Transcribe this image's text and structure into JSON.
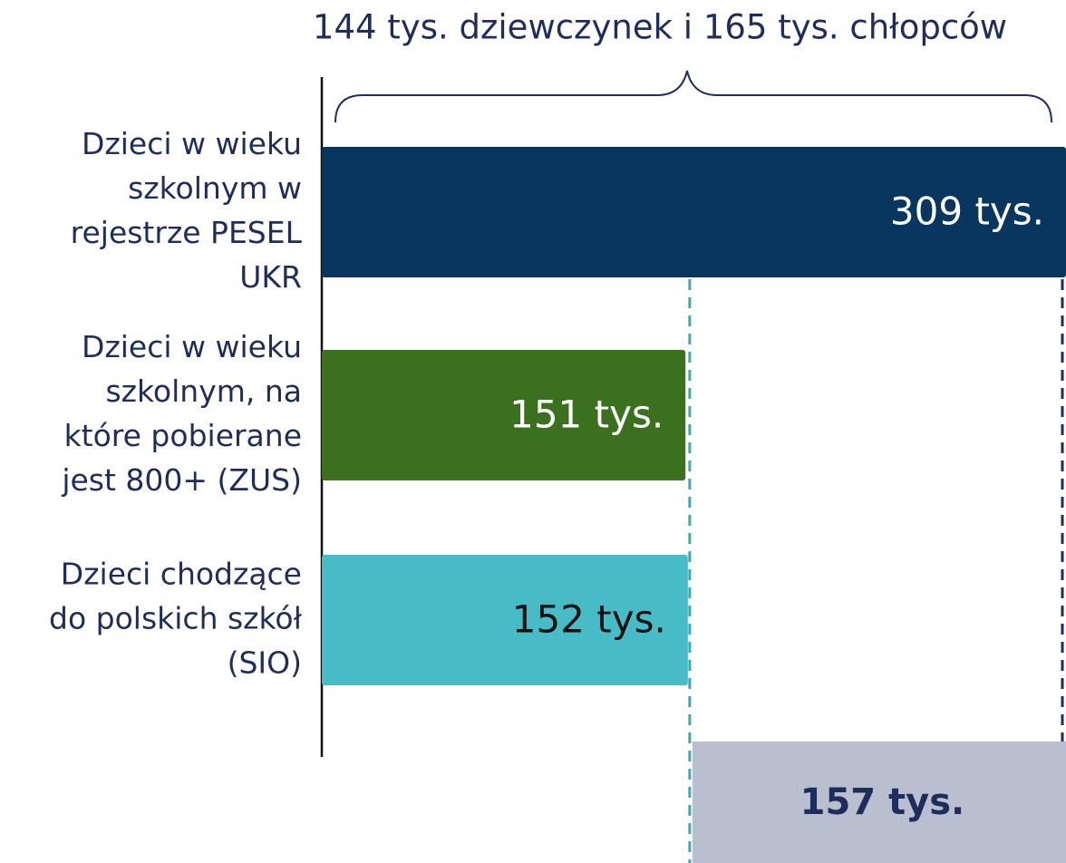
{
  "chart_data": {
    "type": "hbar",
    "annotation_top": "144 tys. dziewczynek i 165 tys. chłopców",
    "categories": [
      [
        "Dzieci w wieku",
        "szkolnym w",
        "rejestrze PESEL",
        "UKR"
      ],
      [
        "Dzieci w wieku",
        "szkolnym, na",
        "które pobierane",
        "jest 800+ (ZUS)"
      ],
      [
        "Dzieci chodzące",
        "do polskich szkół",
        "(SIO)"
      ]
    ],
    "values": [
      309,
      151,
      152
    ],
    "value_labels": [
      "309 tys.",
      "151 tys.",
      "152 tys."
    ],
    "colors": [
      "#08365e",
      "#3a701e",
      "#48bcc6"
    ],
    "label_colors": [
      "#ffffff",
      "#ffffff",
      "#111111"
    ],
    "annotation_bottom": "157 tys.",
    "xlim": [
      0,
      309
    ]
  }
}
